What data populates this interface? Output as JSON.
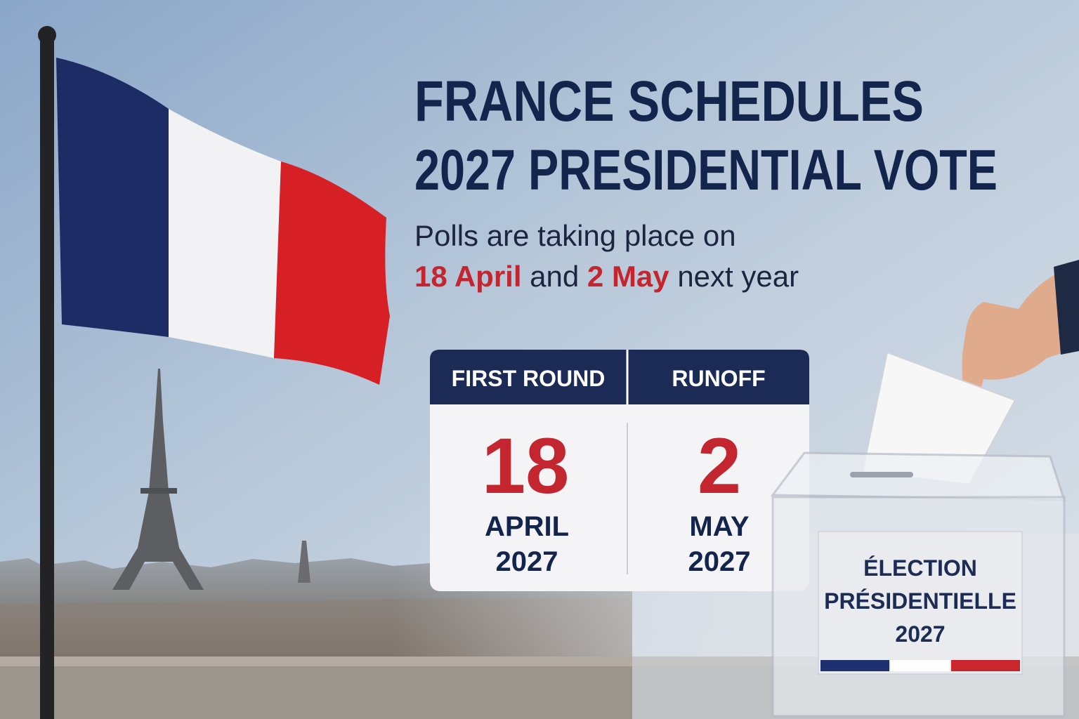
{
  "headline": [
    "FRANCE SCHEDULES",
    "2027 PRESIDENTIAL VOTE"
  ],
  "subtitle": {
    "line1": "Polls are taking place on",
    "date1": "18 April",
    "joiner": "and",
    "date2": "2 May",
    "tail": "next year"
  },
  "schedule": [
    {
      "label": "FIRST ROUND",
      "day": "18",
      "month": "APRIL",
      "year": "2027"
    },
    {
      "label": "RUNOFF",
      "day": "2",
      "month": "MAY",
      "year": "2027"
    }
  ],
  "ballot_box": {
    "label": [
      "ÉLECTION",
      "PRÉSIDENTIELLE",
      "2027"
    ]
  }
}
